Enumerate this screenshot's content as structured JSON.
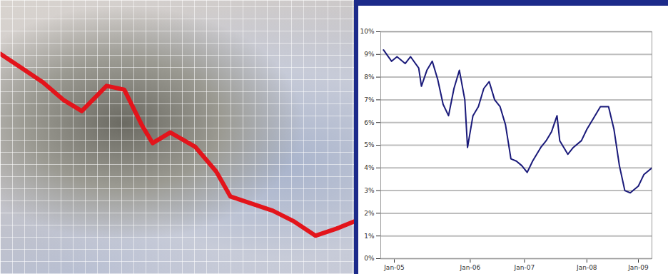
{
  "chart_data": [
    {
      "type": "line",
      "color": "#e3141b",
      "tick_labels": false,
      "x": [
        0,
        6,
        12,
        18,
        23,
        30,
        35,
        40,
        43,
        48,
        55,
        61,
        65,
        71,
        77,
        83,
        89,
        95,
        100
      ],
      "values": [
        80.5,
        75.3,
        70.1,
        63.5,
        59.6,
        68.8,
        67.4,
        54.4,
        47.9,
        51.8,
        46.6,
        37.5,
        28.4,
        25.8,
        23.2,
        19.3,
        14.1,
        16.7,
        19.3
      ],
      "xlim": [
        0,
        100
      ],
      "ylim": [
        0,
        100
      ]
    },
    {
      "type": "line",
      "color": "#1a1a7a",
      "grid": true,
      "x": [
        1,
        4,
        6,
        9,
        11,
        14,
        15,
        17,
        19,
        21,
        23,
        25,
        27,
        29,
        31,
        32,
        34,
        36,
        38,
        40,
        42,
        44,
        46,
        48,
        50,
        52,
        54,
        56,
        59,
        61,
        63,
        65,
        66,
        69,
        71,
        74,
        76,
        79,
        81,
        84,
        86,
        88,
        90,
        92,
        95,
        97,
        100
      ],
      "values": [
        9.2,
        8.7,
        8.9,
        8.6,
        8.9,
        8.4,
        7.6,
        8.3,
        8.7,
        7.9,
        6.8,
        6.3,
        7.5,
        8.3,
        7.0,
        4.9,
        6.3,
        6.7,
        7.5,
        7.8,
        7.0,
        6.7,
        5.9,
        4.4,
        4.3,
        4.1,
        3.8,
        4.3,
        4.9,
        5.2,
        5.6,
        6.3,
        5.2,
        4.6,
        4.9,
        5.2,
        5.7,
        6.3,
        6.7,
        6.7,
        5.7,
        4.1,
        3.0,
        2.9,
        3.2,
        3.7,
        4.0
      ],
      "xlim": [
        0,
        100
      ],
      "ylim": [
        0,
        10
      ],
      "xticks": [
        {
          "value": 5,
          "label": "Jan-05"
        },
        {
          "value": 33,
          "label": "Jan-06"
        },
        {
          "value": 53,
          "label": "Jan-07"
        },
        {
          "value": 76,
          "label": "Jan-08"
        },
        {
          "value": 95,
          "label": "Jan-09"
        }
      ],
      "yticks": [
        {
          "value": 0,
          "label": "0%"
        },
        {
          "value": 1,
          "label": "1%"
        },
        {
          "value": 2,
          "label": "2%"
        },
        {
          "value": 3,
          "label": "3%"
        },
        {
          "value": 4,
          "label": "4%"
        },
        {
          "value": 5,
          "label": "5%"
        },
        {
          "value": 6,
          "label": "6%"
        },
        {
          "value": 7,
          "label": "7%"
        },
        {
          "value": 8,
          "label": "8%"
        },
        {
          "value": 9,
          "label": "9%"
        },
        {
          "value": 10,
          "label": "10%"
        }
      ]
    }
  ]
}
